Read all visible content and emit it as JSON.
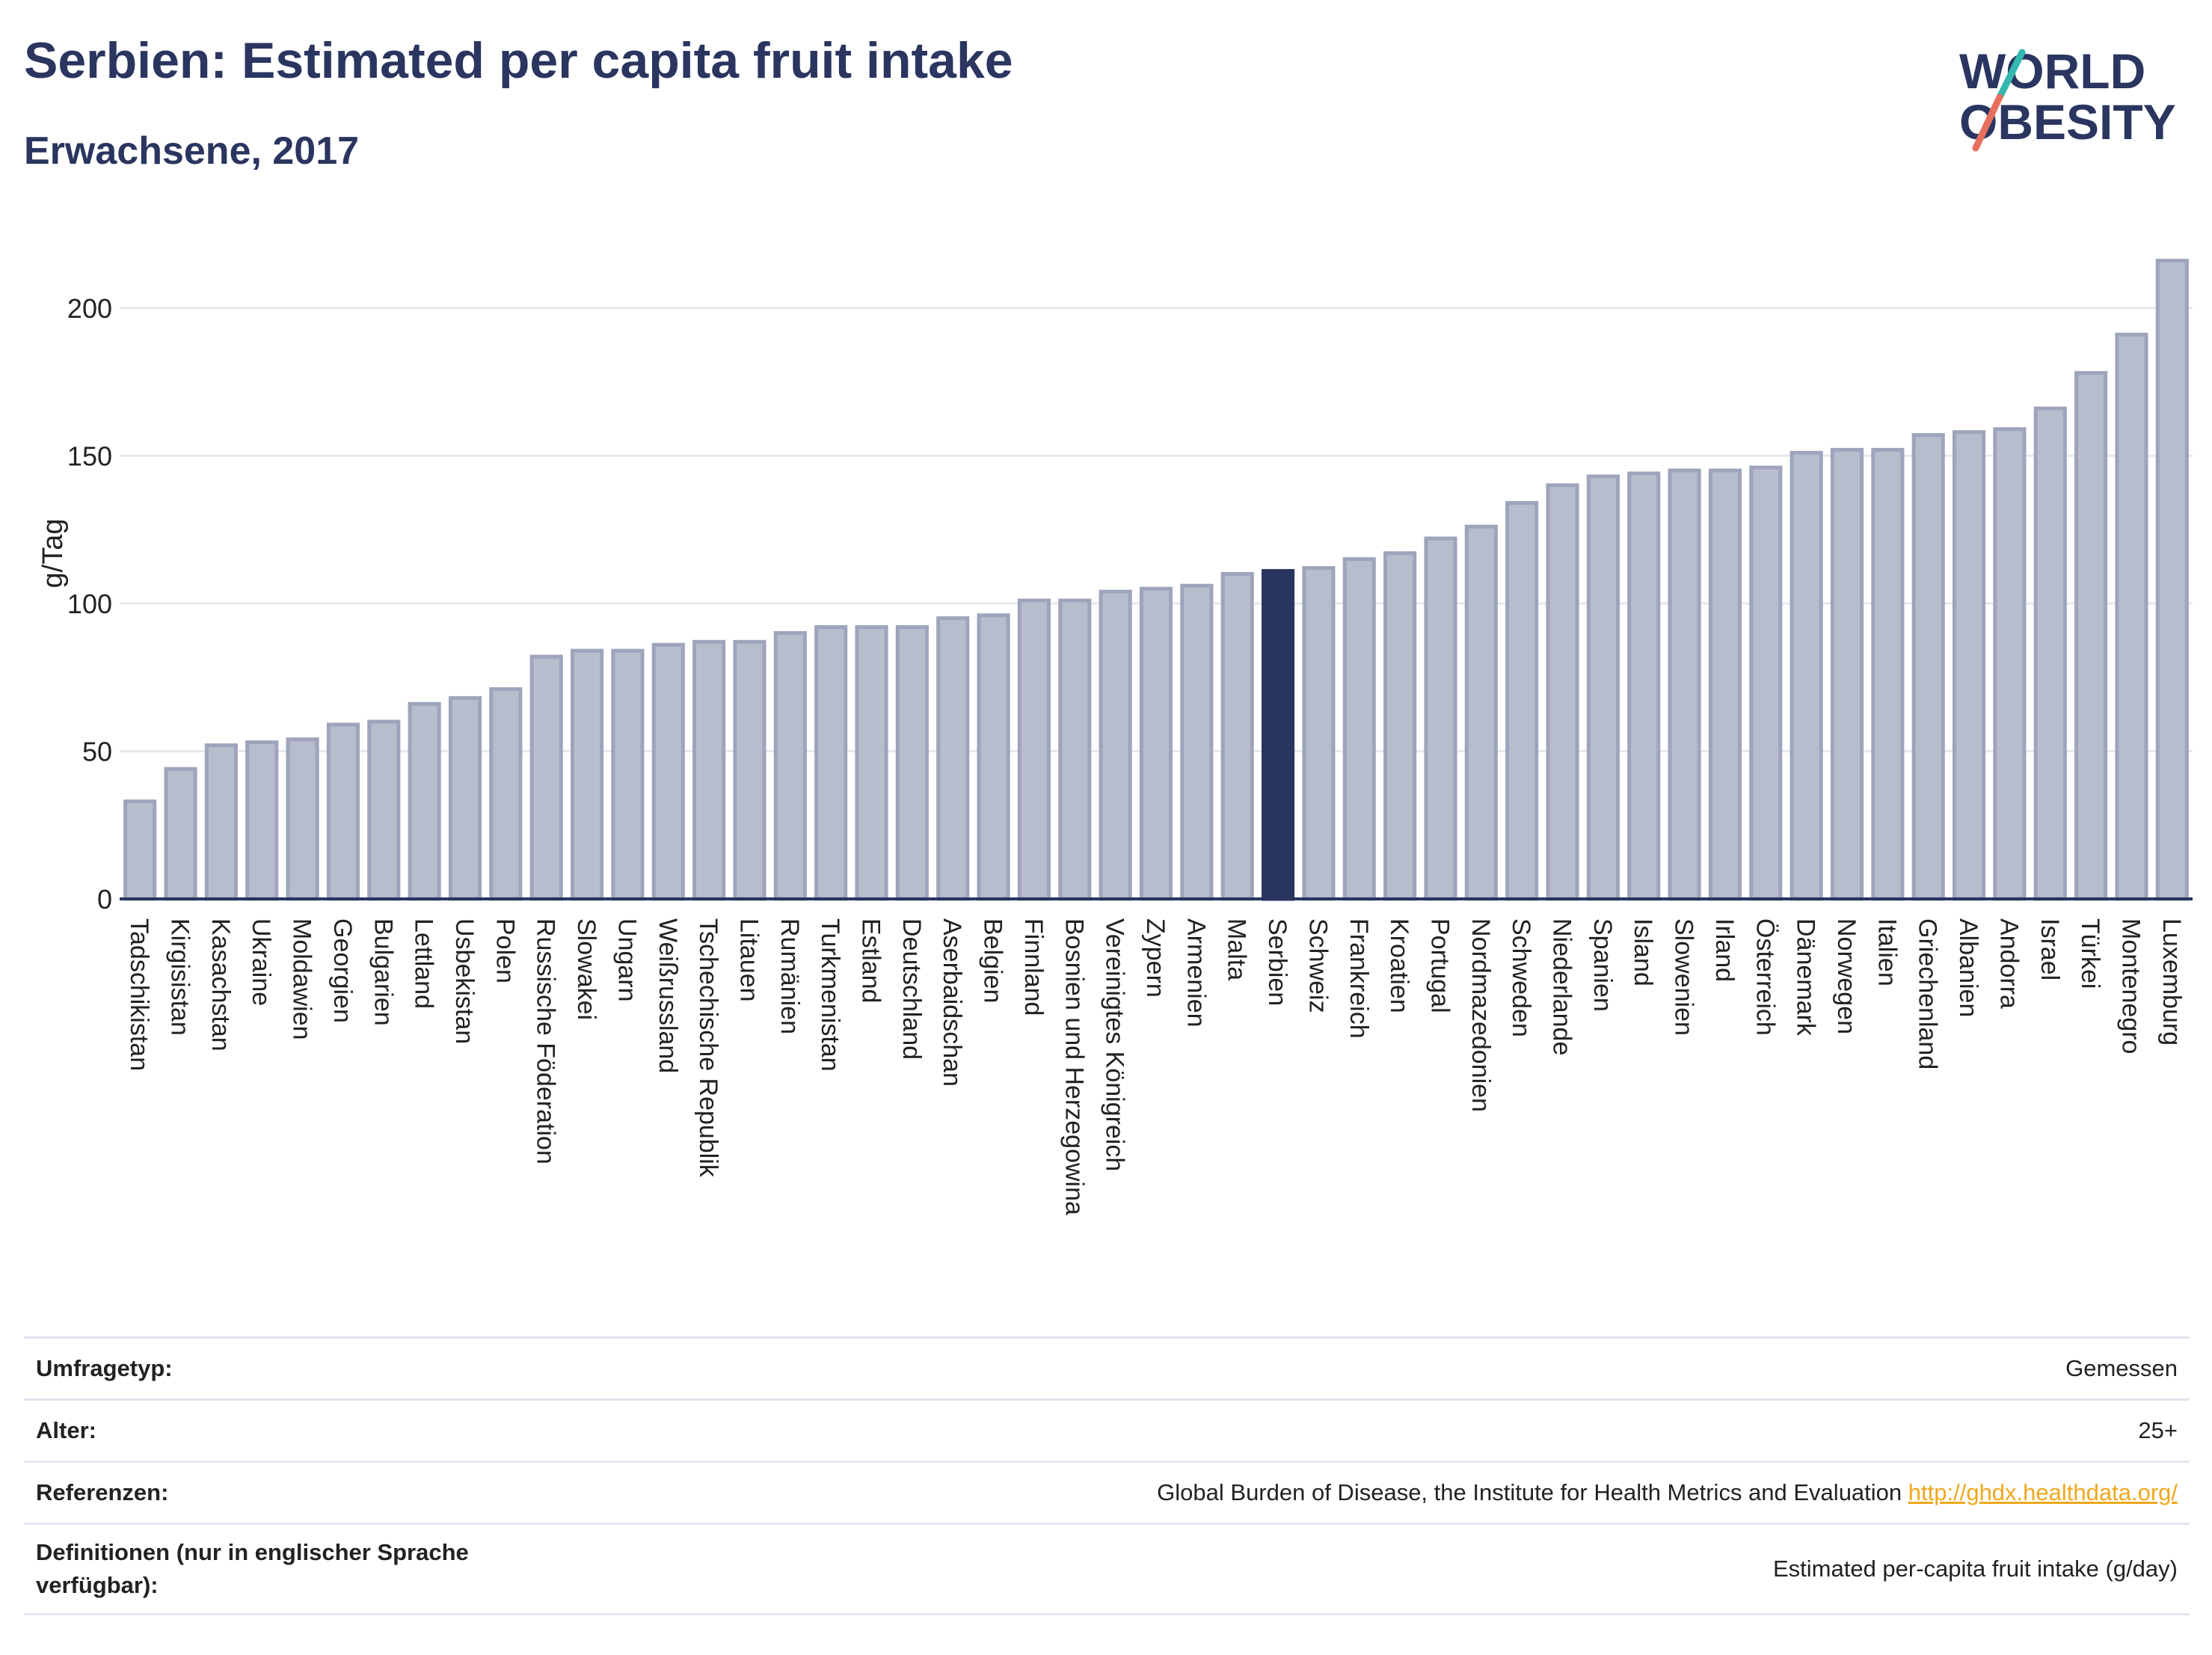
{
  "header": {
    "title": "Serbien: Estimated per capita fruit intake",
    "subtitle": "Erwachsene, 2017",
    "logo_line1": "WORLD",
    "logo_line2": "OBESITY"
  },
  "colors": {
    "bar": "#b8bdcd",
    "bar_border": "#9ea4bb",
    "highlight": "#2a3560",
    "logo_teal": "#33b8b0",
    "logo_coral": "#e76f5e",
    "link": "#f0a81e"
  },
  "chart_data": {
    "type": "bar",
    "ylabel": "g/Tag",
    "ylim": [
      0,
      225
    ],
    "yticks": [
      0,
      50,
      100,
      150,
      200
    ],
    "grid": true,
    "highlight": "Serbien",
    "categories": [
      "Tadschikistan",
      "Kirgisistan",
      "Kasachstan",
      "Ukraine",
      "Moldawien",
      "Georgien",
      "Bulgarien",
      "Lettland",
      "Usbekistan",
      "Polen",
      "Russische Föderation",
      "Slowakei",
      "Ungarn",
      "Weißrussland",
      "Tschechische Republik",
      "Litauen",
      "Rumänien",
      "Turkmenistan",
      "Estland",
      "Deutschland",
      "Aserbaidschan",
      "Belgien",
      "Finnland",
      "Bosnien und Herzegowina",
      "Vereinigtes Königreich",
      "Zypern",
      "Armenien",
      "Malta",
      "Serbien",
      "Schweiz",
      "Frankreich",
      "Kroatien",
      "Portugal",
      "Nordmazedonien",
      "Schweden",
      "Niederlande",
      "Spanien",
      "Island",
      "Slowenien",
      "Irland",
      "Österreich",
      "Dänemark",
      "Norwegen",
      "Italien",
      "Griechenland",
      "Albanien",
      "Andorra",
      "Israel",
      "Türkei",
      "Montenegro",
      "Luxemburg"
    ],
    "values": [
      33,
      44,
      52,
      53,
      54,
      59,
      60,
      66,
      68,
      71,
      82,
      84,
      84,
      86,
      87,
      87,
      90,
      92,
      92,
      92,
      95,
      96,
      101,
      101,
      104,
      105,
      106,
      110,
      111,
      112,
      115,
      117,
      122,
      126,
      134,
      140,
      143,
      144,
      145,
      145,
      146,
      151,
      152,
      152,
      157,
      158,
      159,
      166,
      178,
      191,
      216
    ]
  },
  "meta": [
    {
      "label": "Umfragetyp:",
      "value": "Gemessen"
    },
    {
      "label": "Alter:",
      "value": "25+"
    },
    {
      "label": "Referenzen:",
      "value": "Global Burden of Disease, the Institute for Health Metrics and Evaluation",
      "link": "http://ghdx.healthdata.org/"
    },
    {
      "label": "Definitionen (nur in englischer Sprache verfügbar):",
      "value": "Estimated per-capita fruit intake (g/day)"
    }
  ]
}
